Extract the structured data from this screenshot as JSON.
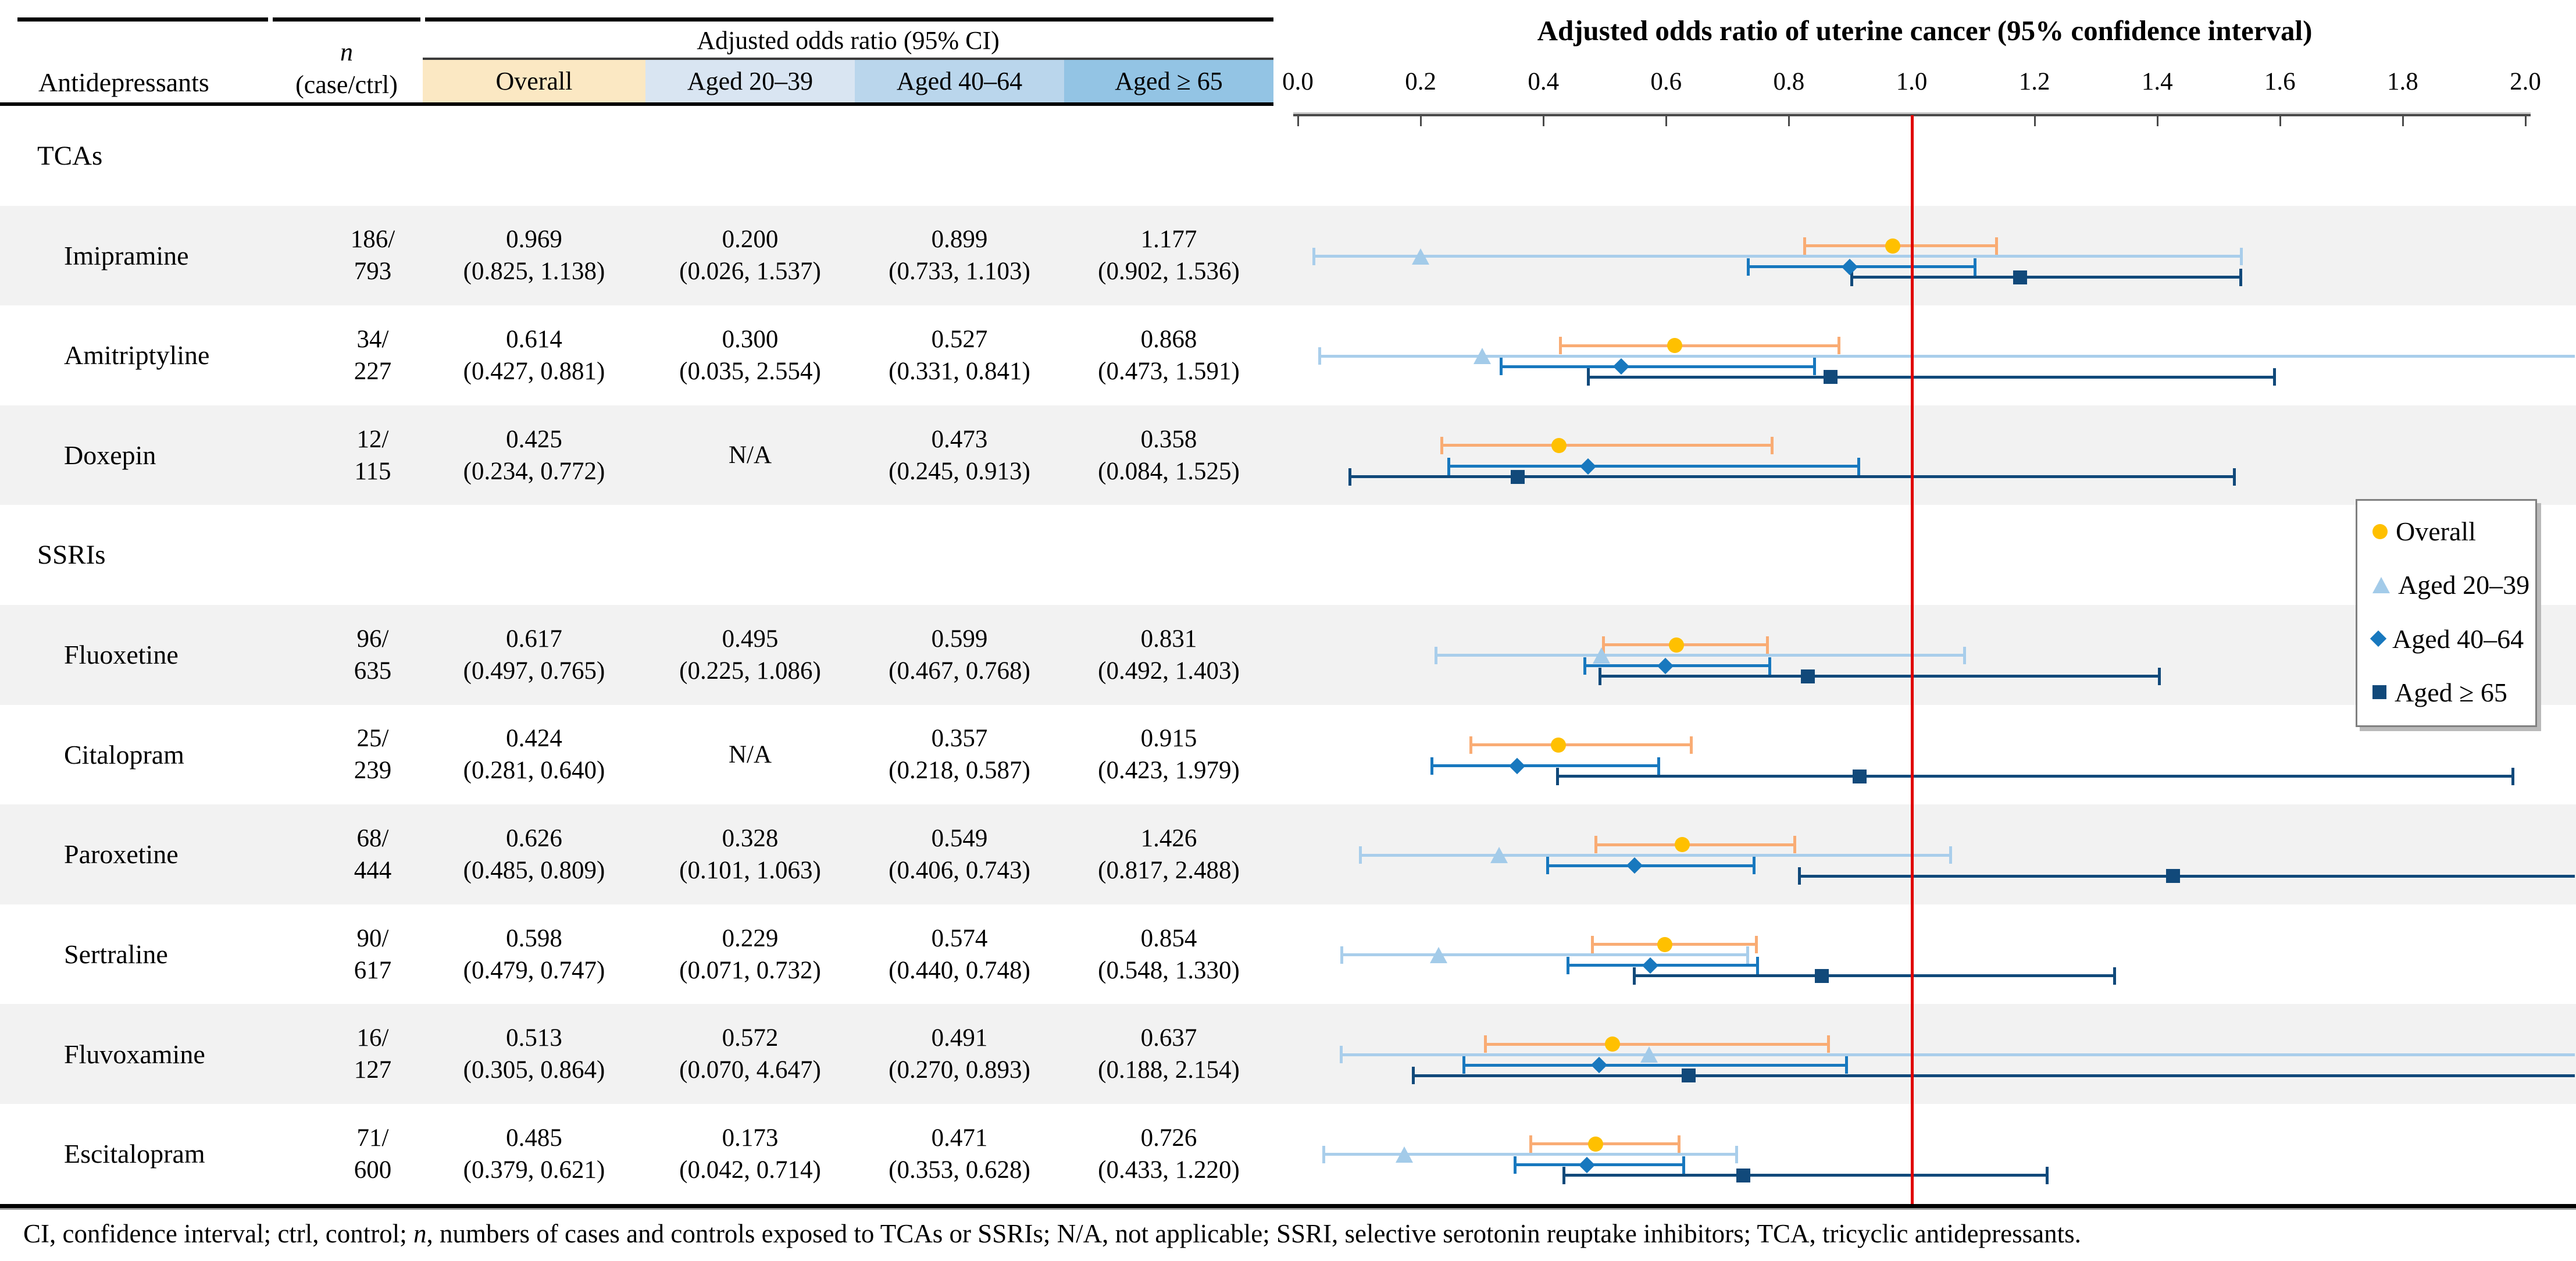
{
  "table": {
    "header": {
      "col1": "Antidepressants",
      "n_line1": "n",
      "n_line2": "(case/ctrl)",
      "span": "Adjusted odds ratio (95% CI)",
      "groups": [
        "Overall",
        "Aged 20–39",
        "Aged 40–64",
        "Aged ≥ 65"
      ],
      "group_colors": [
        "#FBE8C3",
        "#D9E5F2",
        "#BAD6EC",
        "#93C4E4"
      ]
    },
    "rows": [
      {
        "label": "TCAs"
      },
      {
        "label": "Imipramine",
        "n1": "186/",
        "n2": "793",
        "c1v": "0.969",
        "c1ci": "(0.825, 1.138)",
        "c2v": "0.200",
        "c2ci": "(0.026, 1.537)",
        "c3v": "0.899",
        "c3ci": "(0.733, 1.103)",
        "c4v": "1.177",
        "c4ci": "(0.902, 1.536)"
      },
      {
        "label": "Amitriptyline",
        "n1": "34/",
        "n2": "227",
        "c1v": "0.614",
        "c1ci": "(0.427, 0.881)",
        "c2v": "0.300",
        "c2ci": "(0.035, 2.554)",
        "c3v": "0.527",
        "c3ci": "(0.331, 0.841)",
        "c4v": "0.868",
        "c4ci": "(0.473, 1.591)"
      },
      {
        "label": "Doxepin",
        "n1": "12/",
        "n2": "115",
        "c1v": "0.425",
        "c1ci": "(0.234, 0.772)",
        "c2v": "N/A",
        "c2ci": "",
        "c3v": "0.473",
        "c3ci": "(0.245, 0.913)",
        "c4v": "0.358",
        "c4ci": "(0.084, 1.525)"
      },
      {
        "label": "SSRIs"
      },
      {
        "label": "Fluoxetine",
        "n1": "96/",
        "n2": "635",
        "c1v": "0.617",
        "c1ci": "(0.497, 0.765)",
        "c2v": "0.495",
        "c2ci": "(0.225, 1.086)",
        "c3v": "0.599",
        "c3ci": "(0.467, 0.768)",
        "c4v": "0.831",
        "c4ci": "(0.492, 1.403)"
      },
      {
        "label": "Citalopram",
        "n1": "25/",
        "n2": "239",
        "c1v": "0.424",
        "c1ci": "(0.281, 0.640)",
        "c2v": "N/A",
        "c2ci": "",
        "c3v": "0.357",
        "c3ci": "(0.218, 0.587)",
        "c4v": "0.915",
        "c4ci": "(0.423, 1.979)"
      },
      {
        "label": "Paroxetine",
        "n1": "68/",
        "n2": "444",
        "c1v": "0.626",
        "c1ci": "(0.485, 0.809)",
        "c2v": "0.328",
        "c2ci": "(0.101, 1.063)",
        "c3v": "0.549",
        "c3ci": "(0.406, 0.743)",
        "c4v": "1.426",
        "c4ci": "(0.817, 2.488)"
      },
      {
        "label": "Sertraline",
        "n1": "90/",
        "n2": "617",
        "c1v": "0.598",
        "c1ci": "(0.479, 0.747)",
        "c2v": "0.229",
        "c2ci": "(0.071, 0.732)",
        "c3v": "0.574",
        "c3ci": "(0.440, 0.748)",
        "c4v": "0.854",
        "c4ci": "(0.548, 1.330)"
      },
      {
        "label": "Fluvoxamine",
        "n1": "16/",
        "n2": "127",
        "c1v": "0.513",
        "c1ci": "(0.305, 0.864)",
        "c2v": "0.572",
        "c2ci": "(0.070, 4.647)",
        "c3v": "0.491",
        "c3ci": "(0.270, 0.893)",
        "c4v": "0.637",
        "c4ci": "(0.188, 2.154)"
      },
      {
        "label": "Escitalopram",
        "n1": "71/",
        "n2": "600",
        "c1v": "0.485",
        "c1ci": "(0.379, 0.621)",
        "c2v": "0.173",
        "c2ci": "(0.042, 0.714)",
        "c3v": "0.471",
        "c3ci": "(0.353, 0.628)",
        "c4v": "0.726",
        "c4ci": "(0.433, 1.220)"
      }
    ]
  },
  "plot": {
    "title": "Adjusted odds ratio of uterine cancer (95% confidence interval)",
    "ticks": [
      "0.0",
      "0.2",
      "0.4",
      "0.6",
      "0.8",
      "1.0",
      "1.2",
      "1.4",
      "1.6",
      "1.8",
      "2.0"
    ],
    "legend": [
      {
        "label": "Overall",
        "shape": "circle",
        "color": "#FFC000"
      },
      {
        "label": "Aged 20–39",
        "shape": "triangle",
        "color": "#A3CBE9"
      },
      {
        "label": "Aged 40–64",
        "shape": "diamond",
        "color": "#1878BE"
      },
      {
        "label": "Aged ≥ 65",
        "shape": "square",
        "color": "#11497A"
      }
    ]
  },
  "colors": {
    "overall_line": "#F9AC74",
    "overall_marker": "#FFC000",
    "aged2039_line": "#A9CEEB",
    "aged2039_marker": "#A3CBE9",
    "aged4064_line": "#1878BE",
    "aged4064_marker": "#1878BE",
    "aged65_line": "#11497A",
    "aged65_marker": "#11497A",
    "reference_line": "#E00000",
    "row_band": "#F2F2F2"
  },
  "chart_data": {
    "type": "scatter",
    "subtype": "forest-plot",
    "title": "Adjusted odds ratio of uterine cancer (95% confidence interval)",
    "xlabel": "Adjusted odds ratio",
    "xlim": [
      0.0,
      2.0
    ],
    "x_ticks": [
      0.0,
      0.2,
      0.4,
      0.6,
      0.8,
      1.0,
      1.2,
      1.4,
      1.6,
      1.8,
      2.0
    ],
    "reference_line_x": 1.0,
    "legend_position": "right-middle",
    "groups": [
      "Overall",
      "Aged 20–39",
      "Aged 40–64",
      "Aged ≥ 65"
    ],
    "rows": [
      {
        "label": "Imipramine",
        "overall": {
          "est": 0.969,
          "lo": 0.825,
          "hi": 1.138
        },
        "a2039": {
          "est": 0.2,
          "lo": 0.026,
          "hi": 1.537
        },
        "a4064": {
          "est": 0.899,
          "lo": 0.733,
          "hi": 1.103
        },
        "a65": {
          "est": 1.177,
          "lo": 0.902,
          "hi": 1.536
        }
      },
      {
        "label": "Amitriptyline",
        "overall": {
          "est": 0.614,
          "lo": 0.427,
          "hi": 0.881
        },
        "a2039": {
          "est": 0.3,
          "lo": 0.035,
          "hi": 2.554
        },
        "a4064": {
          "est": 0.527,
          "lo": 0.331,
          "hi": 0.841
        },
        "a65": {
          "est": 0.868,
          "lo": 0.473,
          "hi": 1.591
        }
      },
      {
        "label": "Doxepin",
        "overall": {
          "est": 0.425,
          "lo": 0.234,
          "hi": 0.772
        },
        "a2039": null,
        "a4064": {
          "est": 0.473,
          "lo": 0.245,
          "hi": 0.913
        },
        "a65": {
          "est": 0.358,
          "lo": 0.084,
          "hi": 1.525
        }
      },
      {
        "label": "Fluoxetine",
        "overall": {
          "est": 0.617,
          "lo": 0.497,
          "hi": 0.765
        },
        "a2039": {
          "est": 0.495,
          "lo": 0.225,
          "hi": 1.086
        },
        "a4064": {
          "est": 0.599,
          "lo": 0.467,
          "hi": 0.768
        },
        "a65": {
          "est": 0.831,
          "lo": 0.492,
          "hi": 1.403
        }
      },
      {
        "label": "Citalopram",
        "overall": {
          "est": 0.424,
          "lo": 0.281,
          "hi": 0.64
        },
        "a2039": null,
        "a4064": {
          "est": 0.357,
          "lo": 0.218,
          "hi": 0.587
        },
        "a65": {
          "est": 0.915,
          "lo": 0.423,
          "hi": 1.979
        }
      },
      {
        "label": "Paroxetine",
        "overall": {
          "est": 0.626,
          "lo": 0.485,
          "hi": 0.809
        },
        "a2039": {
          "est": 0.328,
          "lo": 0.101,
          "hi": 1.063
        },
        "a4064": {
          "est": 0.549,
          "lo": 0.406,
          "hi": 0.743
        },
        "a65": {
          "est": 1.426,
          "lo": 0.817,
          "hi": 2.488
        }
      },
      {
        "label": "Sertraline",
        "overall": {
          "est": 0.598,
          "lo": 0.479,
          "hi": 0.747
        },
        "a2039": {
          "est": 0.229,
          "lo": 0.071,
          "hi": 0.732
        },
        "a4064": {
          "est": 0.574,
          "lo": 0.44,
          "hi": 0.748
        },
        "a65": {
          "est": 0.854,
          "lo": 0.548,
          "hi": 1.33
        }
      },
      {
        "label": "Fluvoxamine",
        "overall": {
          "est": 0.513,
          "lo": 0.305,
          "hi": 0.864
        },
        "a2039": {
          "est": 0.572,
          "lo": 0.07,
          "hi": 4.647
        },
        "a4064": {
          "est": 0.491,
          "lo": 0.27,
          "hi": 0.893
        },
        "a65": {
          "est": 0.637,
          "lo": 0.188,
          "hi": 2.154
        }
      },
      {
        "label": "Escitalopram",
        "overall": {
          "est": 0.485,
          "lo": 0.379,
          "hi": 0.621
        },
        "a2039": {
          "est": 0.173,
          "lo": 0.042,
          "hi": 0.714
        },
        "a4064": {
          "est": 0.471,
          "lo": 0.353,
          "hi": 0.628
        },
        "a65": {
          "est": 0.726,
          "lo": 0.433,
          "hi": 1.22
        }
      }
    ]
  },
  "footnote": {
    "part1": "CI, confidence interval; ctrl, control; ",
    "n": "n",
    "part2": ", numbers of cases and controls exposed to TCAs or SSRIs; N/A, not applicable; SSRI, selective serotonin reuptake inhibitors; TCA, tricyclic antidepressants."
  }
}
